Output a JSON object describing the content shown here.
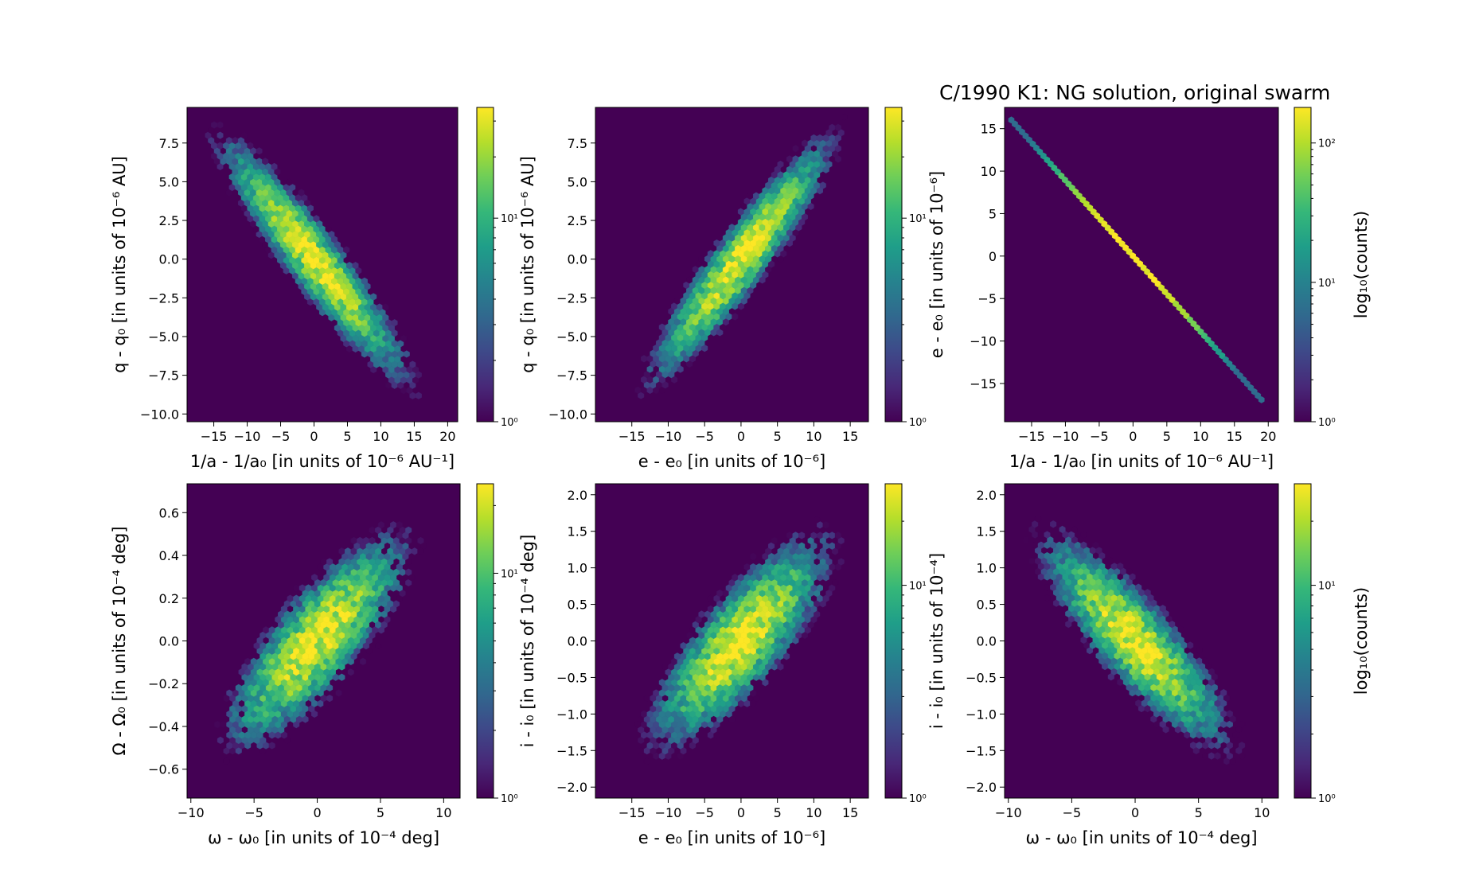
{
  "figure": {
    "title": "C/1990 K1:  NG solution, original swarm"
  },
  "colormap": {
    "name": "viridis",
    "stops": [
      "#440154",
      "#482878",
      "#3e4989",
      "#31688e",
      "#26828e",
      "#1f9e89",
      "#35b779",
      "#6ece58",
      "#b5de2b",
      "#fde725"
    ]
  },
  "chart_data": [
    {
      "type": "heatmap",
      "subtype": "hexbin",
      "xlabel": "1/a - 1/a₀ [in units of 10⁻⁶ AU⁻¹]",
      "ylabel": "q - q₀ [in units of 10⁻⁶ AU]",
      "xlim": [
        -19,
        21.5
      ],
      "ylim": [
        -10.5,
        9.8
      ],
      "xticks": [
        -15,
        -10,
        -5,
        0,
        5,
        10,
        15,
        20
      ],
      "xtick_labels": [
        "−15",
        "−10",
        "−5",
        "0",
        "5",
        "10",
        "15",
        "20"
      ],
      "yticks": [
        -10,
        -7.5,
        -5,
        -2.5,
        0,
        2.5,
        5,
        7.5
      ],
      "ytick_labels": [
        "−10.0",
        "−7.5",
        "−5.0",
        "−2.5",
        "0.0",
        "2.5",
        "5.0",
        "7.5"
      ],
      "distribution": {
        "kind": "gaussian",
        "sx": 6.0,
        "sy": 3.3,
        "rho": -0.93,
        "peak_log_counts": 1.55,
        "n_bins": 45
      },
      "colorbar": {
        "scale": "log",
        "range": [
          1,
          35
        ],
        "major_ticks": [
          1,
          10
        ],
        "tick_labels": [
          "10⁰",
          "10¹"
        ],
        "label": ""
      }
    },
    {
      "type": "heatmap",
      "subtype": "hexbin",
      "xlabel": "e - e₀ [in units of 10⁻⁶]",
      "ylabel": "q - q₀ [in units of 10⁻⁶ AU]",
      "xlim": [
        -20,
        17.5
      ],
      "ylim": [
        -10.5,
        9.8
      ],
      "xticks": [
        -15,
        -10,
        -5,
        0,
        5,
        10,
        15
      ],
      "xtick_labels": [
        "−15",
        "−10",
        "−5",
        "0",
        "5",
        "10",
        "15"
      ],
      "yticks": [
        -10,
        -7.5,
        -5,
        -2.5,
        0,
        2.5,
        5,
        7.5
      ],
      "ytick_labels": [
        "−10.0",
        "−7.5",
        "−5.0",
        "−2.5",
        "0.0",
        "2.5",
        "5.0",
        "7.5"
      ],
      "distribution": {
        "kind": "gaussian",
        "sx": 5.3,
        "sy": 3.3,
        "rho": 0.93,
        "peak_log_counts": 1.55,
        "n_bins": 45
      },
      "colorbar": {
        "scale": "log",
        "range": [
          1,
          35
        ],
        "major_ticks": [
          1,
          10
        ],
        "tick_labels": [
          "10⁰",
          "10¹"
        ],
        "label": ""
      }
    },
    {
      "type": "heatmap",
      "subtype": "hexbin",
      "xlabel": "1/a - 1/a₀ [in units of 10⁻⁶ AU⁻¹]",
      "ylabel": "e - e₀ [in units of 10⁻⁶]",
      "xlim": [
        -19,
        21.5
      ],
      "ylim": [
        -19.5,
        17.5
      ],
      "xticks": [
        -15,
        -10,
        -5,
        0,
        5,
        10,
        15,
        20
      ],
      "xtick_labels": [
        "−15",
        "−10",
        "−5",
        "0",
        "5",
        "10",
        "15",
        "20"
      ],
      "yticks": [
        -15,
        -10,
        -5,
        0,
        5,
        10,
        15
      ],
      "ytick_labels": [
        "−15",
        "−10",
        "−5",
        "0",
        "5",
        "10",
        "15"
      ],
      "distribution": {
        "kind": "line",
        "slope": -0.89,
        "x_range": [
          -18,
          19
        ],
        "sx": 6.0,
        "peak_log_counts": 2.25
      },
      "colorbar": {
        "scale": "log",
        "range": [
          1,
          180
        ],
        "major_ticks": [
          1,
          10,
          100
        ],
        "tick_labels": [
          "10⁰",
          "10¹",
          "10²"
        ],
        "label": "log₁₀(counts)"
      }
    },
    {
      "type": "heatmap",
      "subtype": "hexbin",
      "xlabel": "ω - ω₀ [in units of 10⁻⁴ deg]",
      "ylabel": "Ω - Ω₀ [in units of 10⁻⁴ deg]",
      "xlim": [
        -10.3,
        11.3
      ],
      "ylim": [
        -0.735,
        0.735
      ],
      "xticks": [
        -10,
        -5,
        0,
        5,
        10
      ],
      "xtick_labels": [
        "−10",
        "−5",
        "0",
        "5",
        "10"
      ],
      "yticks": [
        -0.6,
        -0.4,
        -0.2,
        0.0,
        0.2,
        0.4,
        0.6
      ],
      "ytick_labels": [
        "−0.6",
        "−0.4",
        "−0.2",
        "0.0",
        "0.2",
        "0.4",
        "0.6"
      ],
      "distribution": {
        "kind": "gaussian",
        "sx": 3.2,
        "sy": 0.22,
        "rho": 0.8,
        "peak_log_counts": 1.35,
        "n_bins": 45
      },
      "colorbar": {
        "scale": "log",
        "range": [
          1,
          25
        ],
        "major_ticks": [
          1,
          10
        ],
        "tick_labels": [
          "10⁰",
          "10¹"
        ],
        "label": ""
      }
    },
    {
      "type": "heatmap",
      "subtype": "hexbin",
      "xlabel": "e - e₀ [in units of 10⁻⁶]",
      "ylabel": "i - i₀ [in units of 10⁻⁴ deg]",
      "xlim": [
        -20,
        17.5
      ],
      "ylim": [
        -2.15,
        2.15
      ],
      "xticks": [
        -15,
        -10,
        -5,
        0,
        5,
        10,
        15
      ],
      "xtick_labels": [
        "−15",
        "−10",
        "−5",
        "0",
        "5",
        "10",
        "15"
      ],
      "yticks": [
        -2,
        -1.5,
        -1,
        -0.5,
        0,
        0.5,
        1,
        1.5,
        2
      ],
      "ytick_labels": [
        "−2.0",
        "−1.5",
        "−1.0",
        "−0.5",
        "0.0",
        "0.5",
        "1.0",
        "1.5",
        "2.0"
      ],
      "distribution": {
        "kind": "gaussian",
        "sx": 5.3,
        "sy": 0.62,
        "rho": 0.8,
        "peak_log_counts": 1.45,
        "n_bins": 45
      },
      "colorbar": {
        "scale": "log",
        "range": [
          1,
          30
        ],
        "major_ticks": [
          1,
          10
        ],
        "tick_labels": [
          "10⁰",
          "10¹"
        ],
        "label": ""
      }
    },
    {
      "type": "heatmap",
      "subtype": "hexbin",
      "xlabel": "ω - ω₀ [in units of 10⁻⁴ deg]",
      "ylabel": "i - i₀ [in units of 10⁻⁴]",
      "xlim": [
        -10.3,
        11.3
      ],
      "ylim": [
        -2.15,
        2.15
      ],
      "xticks": [
        -10,
        -5,
        0,
        5,
        10
      ],
      "xtick_labels": [
        "−10",
        "−5",
        "0",
        "5",
        "10"
      ],
      "yticks": [
        -2,
        -1.5,
        -1,
        -0.5,
        0,
        0.5,
        1,
        1.5,
        2
      ],
      "ytick_labels": [
        "−2.0",
        "−1.5",
        "−1.0",
        "−0.5",
        "0.0",
        "0.5",
        "1.0",
        "1.5",
        "2.0"
      ],
      "distribution": {
        "kind": "gaussian",
        "sx": 3.2,
        "sy": 0.62,
        "rho": -0.85,
        "peak_log_counts": 1.45,
        "n_bins": 45
      },
      "colorbar": {
        "scale": "log",
        "range": [
          1,
          30
        ],
        "major_ticks": [
          1,
          10
        ],
        "tick_labels": [
          "10⁰",
          "10¹"
        ],
        "label": "log₁₀(counts)"
      }
    }
  ]
}
